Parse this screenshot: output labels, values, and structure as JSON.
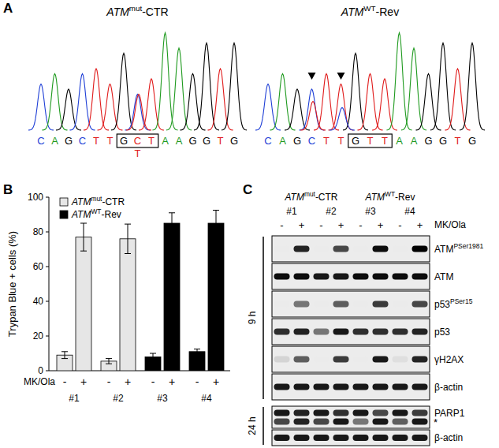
{
  "gene": "ATM",
  "panel_labels": [
    "A",
    "B",
    "C"
  ],
  "panel_a": {
    "left": {
      "title": "ATMmut-CTR",
      "sequence": [
        "C",
        "A",
        "G",
        "C",
        "T",
        "T",
        "G",
        "C",
        "T",
        "A",
        "A",
        "G",
        "G",
        "T",
        "G"
      ],
      "peaks": [
        45,
        55,
        40,
        55,
        60,
        45,
        75,
        35,
        50,
        95,
        80,
        55,
        85,
        60,
        85
      ],
      "box": [
        6,
        8
      ],
      "highlight": 7,
      "secondary": [
        {
          "index": 7,
          "base": "T",
          "height": 35
        }
      ],
      "below": {
        "index": 7,
        "text": "T"
      },
      "arrows": []
    },
    "right": {
      "title": "ATMWT-Rev",
      "sequence": [
        "C",
        "A",
        "G",
        "C",
        "T",
        "T",
        "G",
        "T",
        "T",
        "A",
        "A",
        "G",
        "G",
        "T",
        "G"
      ],
      "peaks": [
        45,
        55,
        40,
        40,
        55,
        45,
        75,
        55,
        50,
        95,
        80,
        55,
        85,
        60,
        85
      ],
      "box": [
        6,
        8
      ],
      "highlight": 7,
      "secondary": [
        {
          "index": 3,
          "base": "T",
          "height": 28
        },
        {
          "index": 5,
          "base": "C",
          "height": 22
        }
      ],
      "arrows": [
        3,
        5
      ]
    }
  },
  "chart_data": {
    "type": "bar",
    "title": "",
    "ylabel": "Trypan Blue + cells (%)",
    "xlabel": "MK/Ola",
    "categories": [
      "-",
      "+",
      "-",
      "+",
      "-",
      "+",
      "-",
      "+"
    ],
    "groups": [
      "#1",
      "#2",
      "#3",
      "#4"
    ],
    "ylim": [
      0,
      100
    ],
    "yticks": [
      0,
      20,
      40,
      60,
      80,
      100
    ],
    "grid": false,
    "legend": "top-left",
    "series": [
      {
        "name": "ATMmut-CTR",
        "color": "#e6e6e6",
        "values": [
          9,
          77,
          5.5,
          76,
          null,
          null,
          null,
          null
        ],
        "errors": [
          2,
          8,
          1.5,
          8.5,
          null,
          null,
          null,
          null
        ]
      },
      {
        "name": "ATMWT-Rev",
        "color": "#000000",
        "values": [
          null,
          null,
          null,
          null,
          8,
          85,
          11,
          85
        ],
        "errors": [
          null,
          null,
          null,
          null,
          2,
          6,
          1.5,
          7.5
        ]
      }
    ]
  },
  "panel_c": {
    "genotypes": [
      "ATMmut-CTR",
      "ATMWT-Rev"
    ],
    "clones": [
      "#1",
      "#2",
      "#3",
      "#4"
    ],
    "treatment": "MK/Ola",
    "signs": [
      "-",
      "+",
      "-",
      "+",
      "-",
      "+",
      "-",
      "+"
    ],
    "timepoints": [
      {
        "label": "9 h",
        "rows": [
          {
            "label": "ATM",
            "sup": "PSer1981",
            "intensity": [
              0,
              0.85,
              0,
              0.7,
              0,
              0.95,
              0,
              1
            ]
          },
          {
            "label": "ATM",
            "intensity": [
              0.95,
              0.95,
              0.9,
              0.9,
              0.95,
              0.95,
              0.95,
              0.95
            ]
          },
          {
            "label": "p53",
            "sup": "PSer15",
            "intensity": [
              0,
              0.5,
              0,
              0.6,
              0,
              0.75,
              0,
              0.7
            ]
          },
          {
            "label": "p53",
            "intensity": [
              0.8,
              0.85,
              0.5,
              0.9,
              0.8,
              0.8,
              0.8,
              0.85
            ]
          },
          {
            "label": "γH2AX",
            "intensity": [
              0.1,
              0.6,
              0,
              0.75,
              0,
              0.9,
              0.05,
              0.85
            ]
          },
          {
            "label": "β-actin",
            "intensity": [
              0.9,
              0.9,
              0.9,
              0.9,
              0.9,
              0.9,
              0.9,
              0.9
            ]
          }
        ]
      },
      {
        "label": "24 h",
        "rows": [
          {
            "label": "PARP1",
            "intensity": [
              0.9,
              0.85,
              0.9,
              0.8,
              0.9,
              0.7,
              0.9,
              0.75
            ],
            "lower_intensity": [
              0.7,
              0.85,
              0.7,
              0.9,
              0.5,
              0.9,
              0.6,
              0.9
            ],
            "lower_label": "*"
          },
          {
            "label": "β-actin",
            "intensity": [
              0.9,
              0.9,
              0.9,
              0.9,
              0.9,
              0.9,
              0.9,
              0.9
            ]
          }
        ]
      }
    ]
  }
}
